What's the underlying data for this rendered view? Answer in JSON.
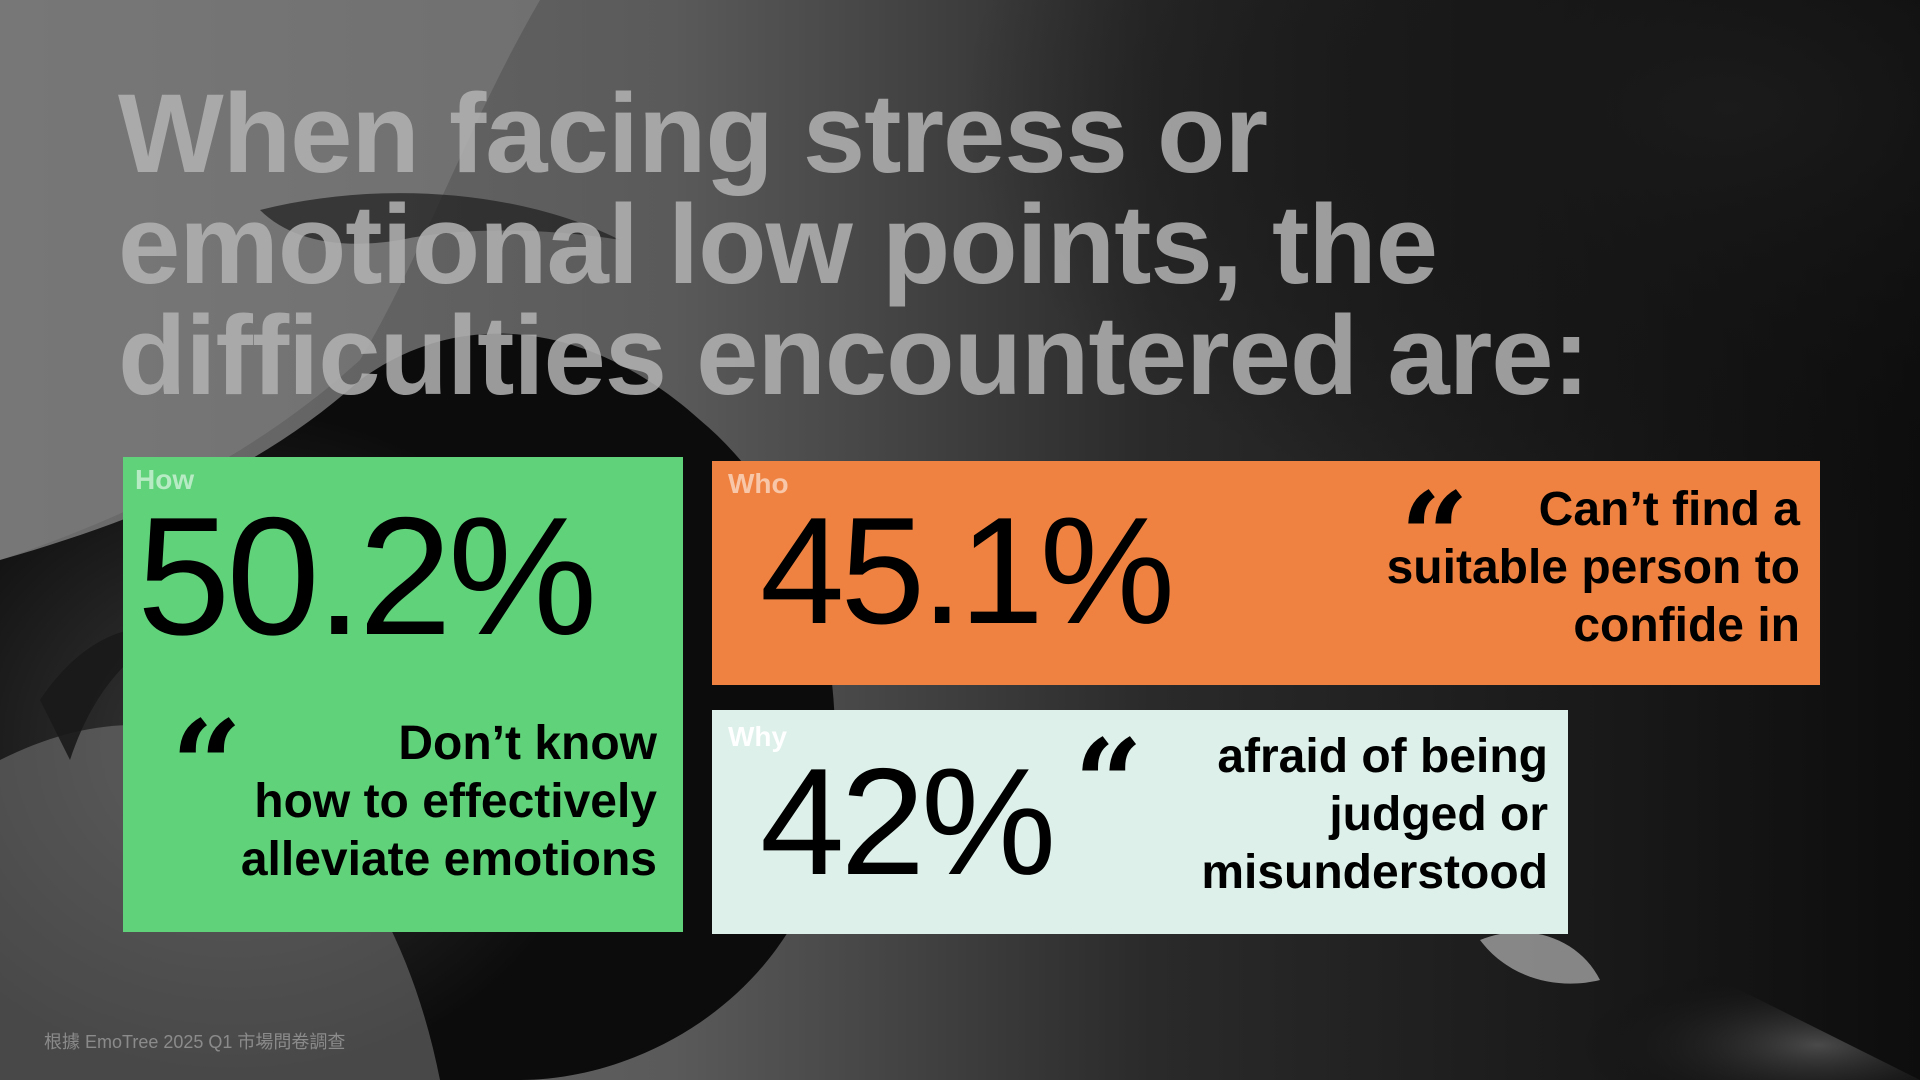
{
  "title": {
    "lines": [
      "When facing stress or",
      "emotional low points, the",
      "difficulties encountered are:"
    ]
  },
  "cards": [
    {
      "tag": "How",
      "stat": "50.2%",
      "quote_mark": "“",
      "quote_lines": [
        "Don’t know",
        "how to effectively",
        "alleviate emotions"
      ],
      "color": "#5fd27a"
    },
    {
      "tag": "Who",
      "stat": "45.1%",
      "quote_mark": "“",
      "quote_lines": [
        "Can’t find a",
        "suitable person to",
        "confide in"
      ],
      "color": "#ef8241"
    },
    {
      "tag": "Why",
      "stat": "42%",
      "quote_mark": "“",
      "quote_lines": [
        "afraid of being",
        "judged or",
        "misunderstood"
      ],
      "color": "#ddf0e9"
    }
  ],
  "footnote": "根據 EmoTree 2025 Q1 市場問卷調查"
}
